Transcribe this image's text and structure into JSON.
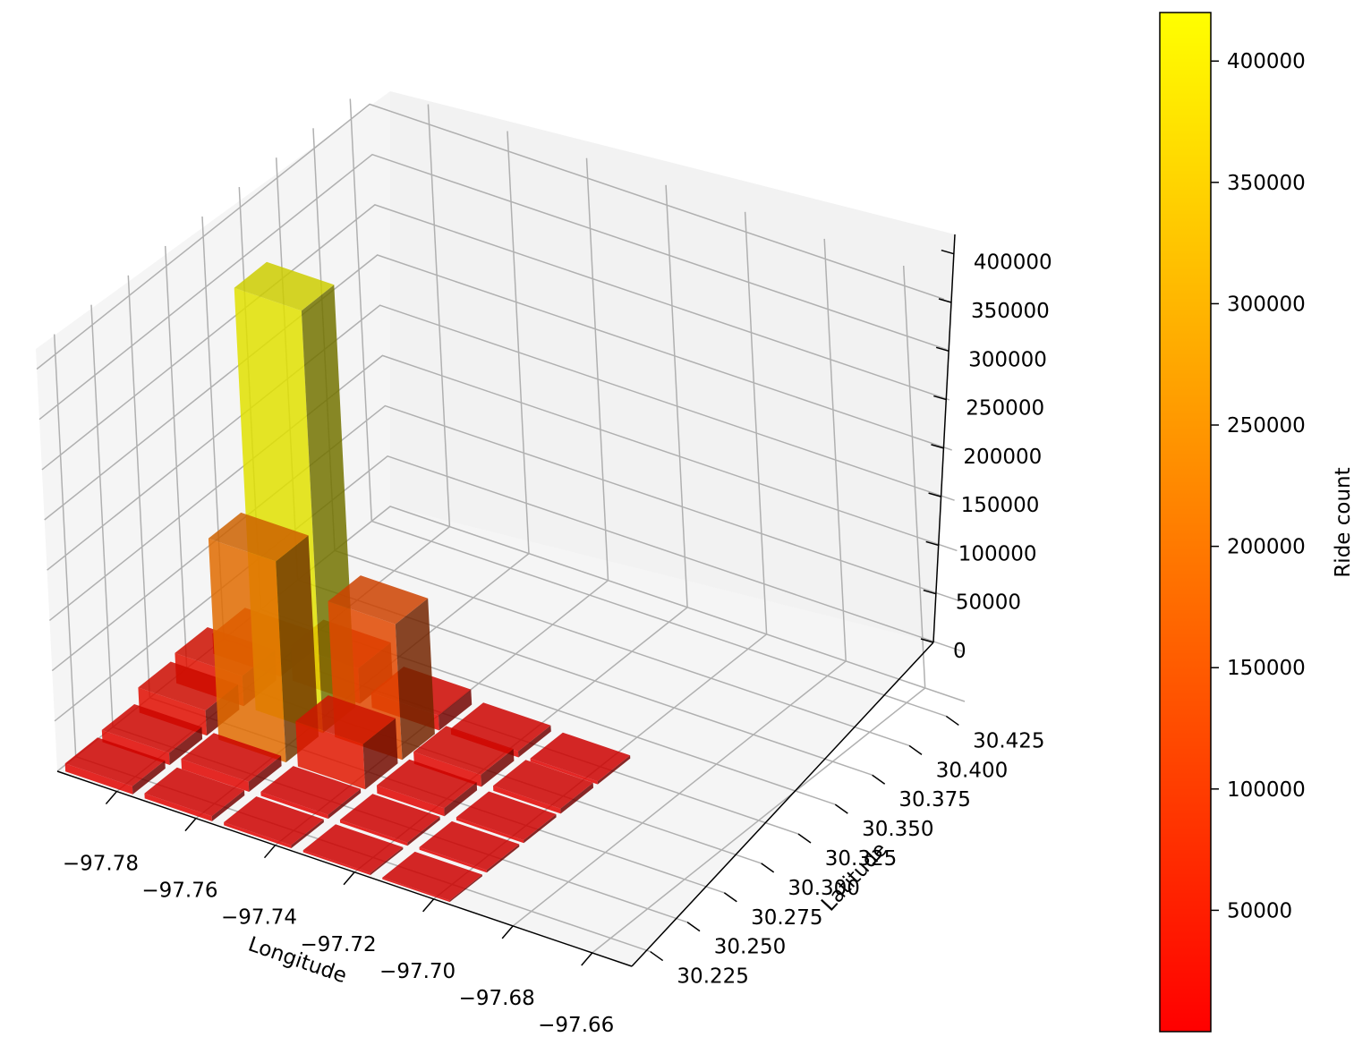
{
  "chart_data": {
    "type": "bar3d",
    "title": "",
    "xlabel": "Longitude",
    "ylabel": "Latitude",
    "zlabel": "",
    "x_ticks": [
      "−97.78",
      "−97.76",
      "−97.74",
      "−97.72",
      "−97.70",
      "−97.68",
      "−97.66"
    ],
    "y_ticks": [
      "30.225",
      "30.250",
      "30.275",
      "30.300",
      "30.325",
      "30.350",
      "30.375",
      "30.400",
      "30.425"
    ],
    "z_ticks": [
      "0",
      "50000",
      "100000",
      "150000",
      "200000",
      "250000",
      "300000",
      "350000",
      "400000"
    ],
    "z_range": [
      0,
      420000
    ],
    "grid": true,
    "colormap": "autumn (red to yellow)",
    "colorbar": {
      "label": "Ride count",
      "ticks": [
        "50000",
        "100000",
        "150000",
        "200000",
        "250000",
        "300000",
        "350000",
        "400000"
      ],
      "range": [
        0,
        420000
      ],
      "low_color": "#ff0000",
      "high_color": "#ffff00"
    },
    "bars": [
      {
        "lon": -97.785,
        "lat": 30.225,
        "count": 8000
      },
      {
        "lon": -97.765,
        "lat": 30.225,
        "count": 5000
      },
      {
        "lon": -97.745,
        "lat": 30.225,
        "count": 3000
      },
      {
        "lon": -97.725,
        "lat": 30.225,
        "count": 2000
      },
      {
        "lon": -97.705,
        "lat": 30.225,
        "count": 1500
      },
      {
        "lon": -97.785,
        "lat": 30.25,
        "count": 12000
      },
      {
        "lon": -97.765,
        "lat": 30.25,
        "count": 10000
      },
      {
        "lon": -97.745,
        "lat": 30.25,
        "count": 4000
      },
      {
        "lon": -97.725,
        "lat": 30.25,
        "count": 3000
      },
      {
        "lon": -97.705,
        "lat": 30.25,
        "count": 2500
      },
      {
        "lon": -97.785,
        "lat": 30.275,
        "count": 25000
      },
      {
        "lon": -97.765,
        "lat": 30.275,
        "count": 200000
      },
      {
        "lon": -97.745,
        "lat": 30.275,
        "count": 45000
      },
      {
        "lon": -97.725,
        "lat": 30.275,
        "count": 8000
      },
      {
        "lon": -97.705,
        "lat": 30.275,
        "count": 3000
      },
      {
        "lon": -97.785,
        "lat": 30.3,
        "count": 30000
      },
      {
        "lon": -97.765,
        "lat": 30.3,
        "count": 420000
      },
      {
        "lon": -97.745,
        "lat": 30.3,
        "count": 135000
      },
      {
        "lon": -97.725,
        "lat": 30.3,
        "count": 12000
      },
      {
        "lon": -97.705,
        "lat": 30.3,
        "count": 5000
      },
      {
        "lon": -97.785,
        "lat": 30.325,
        "count": 20000
      },
      {
        "lon": -97.765,
        "lat": 30.325,
        "count": 35000
      },
      {
        "lon": -97.745,
        "lat": 30.325,
        "count": 15000
      },
      {
        "lon": -97.725,
        "lat": 30.325,
        "count": 6000
      },
      {
        "lon": -97.705,
        "lat": 30.325,
        "count": 3000
      }
    ]
  }
}
